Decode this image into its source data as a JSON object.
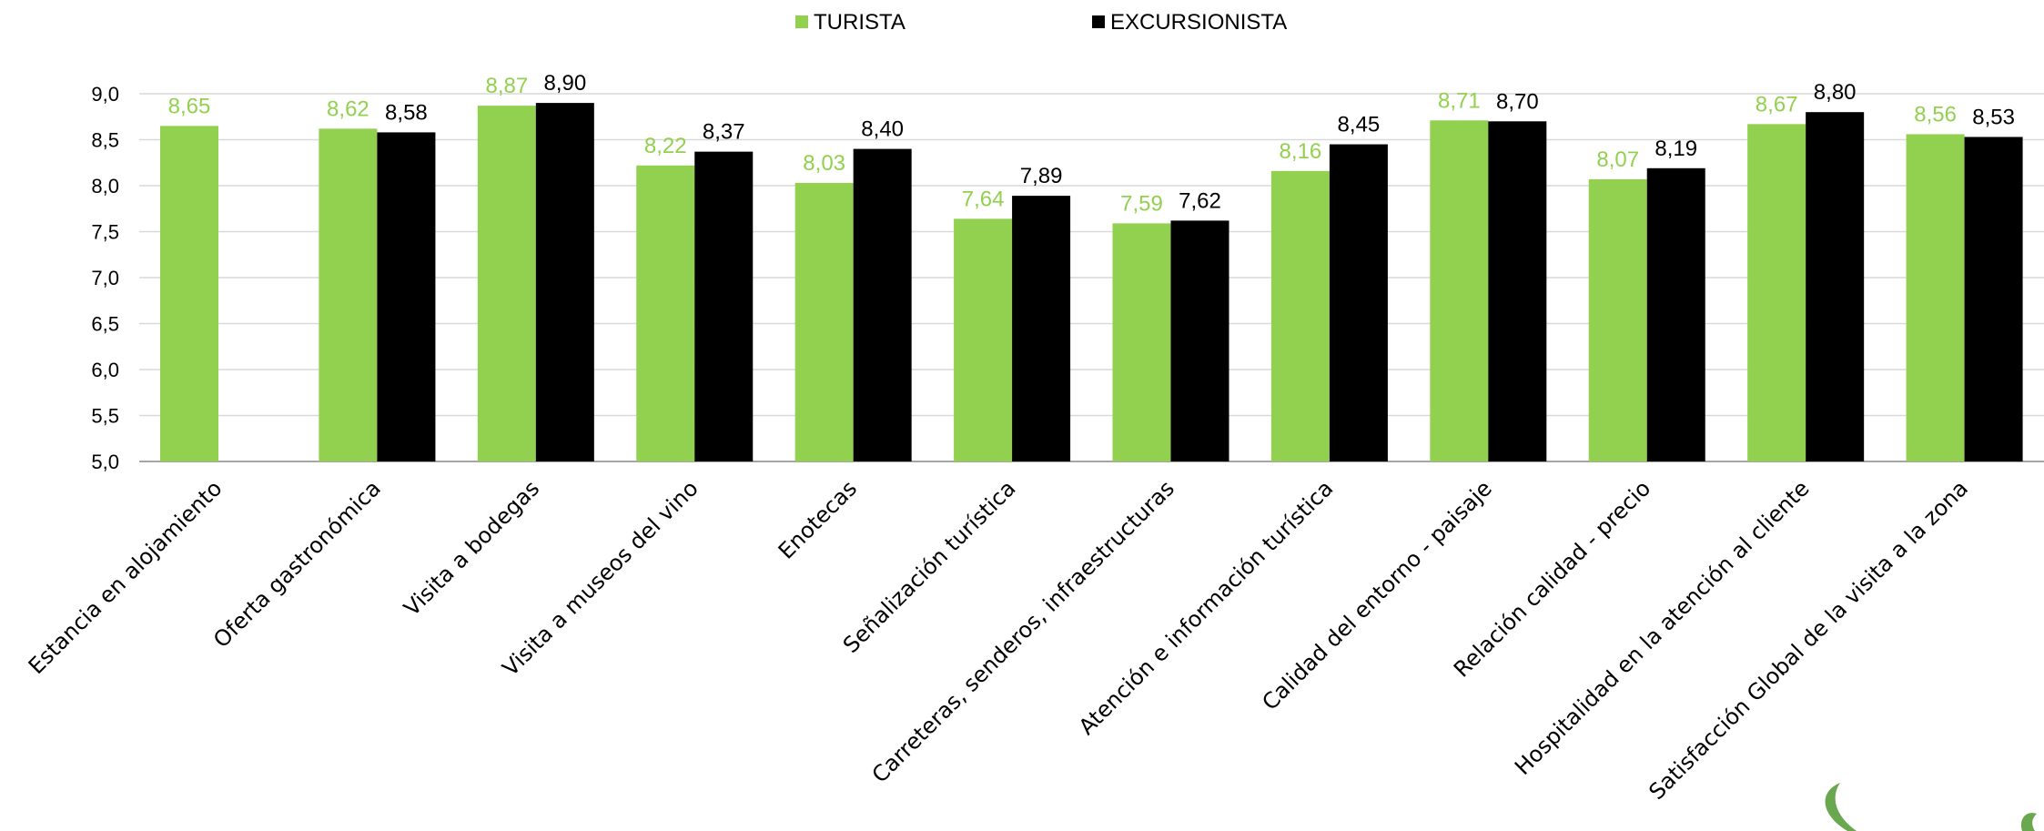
{
  "chart_data": {
    "type": "bar",
    "categories": [
      "Estancia en alojamiento",
      "Oferta gastronómica",
      "Visita a bodegas",
      "Visita a museos del vino",
      "Enotecas",
      "Señalización turística",
      "Carreteras, senderos, infraestructuras",
      "Atención e información turística",
      "Calidad del entorno - paisaje",
      "Relación calidad - precio",
      "Hospitalidad en la atención al cliente",
      "Satisfacción Global de la visita a la zona"
    ],
    "series": [
      {
        "name": "TURISTA",
        "color": "#92d050",
        "values": [
          8.65,
          8.62,
          8.87,
          8.22,
          8.03,
          7.64,
          7.59,
          8.16,
          8.71,
          8.07,
          8.67,
          8.56
        ],
        "labels": [
          "8,65",
          "8,62",
          "8,87",
          "8,22",
          "8,03",
          "7,64",
          "7,59",
          "8,16",
          "8,71",
          "8,07",
          "8,67",
          "8,56"
        ]
      },
      {
        "name": "EXCURSIONISTA",
        "color": "#000000",
        "values": [
          null,
          8.58,
          8.9,
          8.37,
          8.4,
          7.89,
          7.62,
          8.45,
          8.7,
          8.19,
          8.8,
          8.53
        ],
        "labels": [
          null,
          "8,58",
          "8,90",
          "8,37",
          "8,40",
          "7,89",
          "7,62",
          "8,45",
          "8,70",
          "8,19",
          "8,80",
          "8,53"
        ]
      }
    ],
    "ylim": [
      5.0,
      9.0
    ],
    "yticks": [
      5.0,
      5.5,
      6.0,
      6.5,
      7.0,
      7.5,
      8.0,
      8.5,
      9.0
    ],
    "ytick_labels": [
      "5,0",
      "5,5",
      "6,0",
      "6,5",
      "7,0",
      "7,5",
      "8,0",
      "8,5",
      "9,0"
    ],
    "grid": true,
    "legend_position": "top-center",
    "gridline_color": "#d9d9d9",
    "axis_color": "#a6a6a6",
    "title": "",
    "xlabel": "",
    "ylabel": ""
  }
}
